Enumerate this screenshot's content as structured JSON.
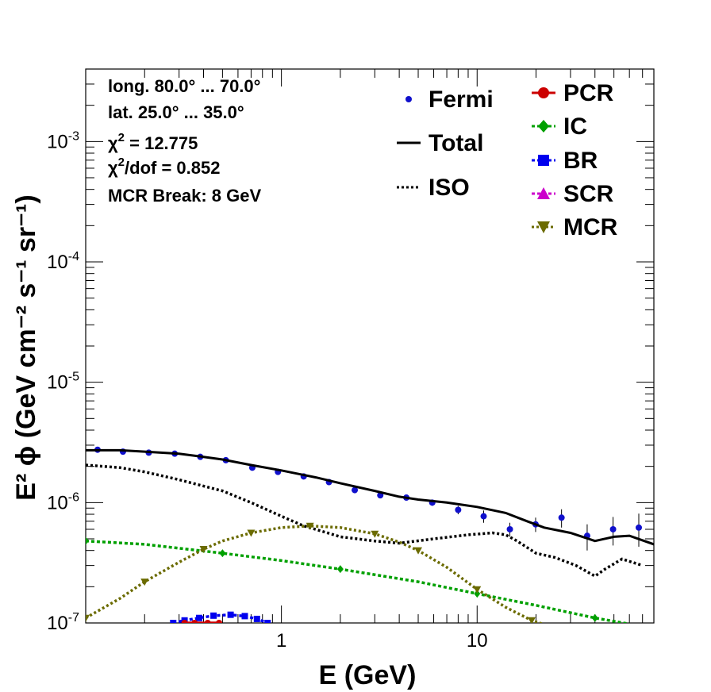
{
  "chart_data": {
    "type": "line",
    "x_scale": "log",
    "y_scale": "log",
    "xlim": [
      0.1,
      80
    ],
    "ylim": [
      1e-07,
      0.004
    ],
    "xlabel": "E (GeV)",
    "ylabel": "E² ϕ (GeV cm⁻² s⁻¹ sr⁻¹)",
    "x_ticks": [
      {
        "value": 1,
        "label": "1"
      },
      {
        "value": 10,
        "label": "10"
      }
    ],
    "y_ticks": [
      {
        "value": 1e-07,
        "base": "10",
        "exp": "-7"
      },
      {
        "value": 1e-06,
        "base": "10",
        "exp": "-6"
      },
      {
        "value": 1e-05,
        "base": "10",
        "exp": "-5"
      },
      {
        "value": 0.0001,
        "base": "10",
        "exp": "-4"
      },
      {
        "value": 0.001,
        "base": "10",
        "exp": "-3"
      }
    ],
    "annotations": {
      "longitude": "long. 80.0° ... 70.0°",
      "latitude": "lat. 25.0° ... 35.0°",
      "chi2_prefix": "χ",
      "chi2_sup": "2",
      "chi2_value": " = 12.775",
      "chi2dof_prefix": "χ",
      "chi2dof_sup": "2",
      "chi2dof_value": "/dof = 0.852",
      "mcr_break": "MCR Break:  8 GeV"
    },
    "legend": [
      {
        "name": "Fermi",
        "color": "#1010cc",
        "marker": "circle",
        "line": "none"
      },
      {
        "name": "Total",
        "color": "#000000",
        "marker": "none",
        "line": "solid"
      },
      {
        "name": "ISO",
        "color": "#000000",
        "marker": "none",
        "line": "dotted"
      },
      {
        "name": "PCR",
        "color": "#cc0000",
        "marker": "circle",
        "line": "solid"
      },
      {
        "name": "IC",
        "color": "#00a000",
        "marker": "diamond",
        "line": "dashed"
      },
      {
        "name": "BR",
        "color": "#0000ee",
        "marker": "square",
        "line": "dashed"
      },
      {
        "name": "SCR",
        "color": "#cc00cc",
        "marker": "triangle-up",
        "line": "dashed"
      },
      {
        "name": "MCR",
        "color": "#6b6b00",
        "marker": "triangle-down",
        "line": "dotted"
      }
    ],
    "series": [
      {
        "name": "Fermi",
        "kind": "points",
        "color": "#1010cc",
        "x": [
          0.115,
          0.155,
          0.21,
          0.285,
          0.385,
          0.52,
          0.71,
          0.96,
          1.3,
          1.75,
          2.37,
          3.2,
          4.35,
          5.9,
          8.0,
          10.8,
          14.7,
          19.9,
          27.0,
          36.5,
          49.5,
          67.0
        ],
        "y": [
          2.75e-06,
          2.65e-06,
          2.6e-06,
          2.55e-06,
          2.4e-06,
          2.25e-06,
          1.95e-06,
          1.8e-06,
          1.65e-06,
          1.48e-06,
          1.27e-06,
          1.15e-06,
          1.1e-06,
          1e-06,
          8.7e-07,
          7.7e-07,
          6e-07,
          6.6e-07,
          7.5e-07,
          5.3e-07,
          6e-07,
          6.2e-07
        ],
        "yerr": [
          6e-08,
          5e-08,
          5e-08,
          5e-08,
          5e-08,
          5e-08,
          5e-08,
          5e-08,
          5e-08,
          5e-08,
          5e-08,
          5e-08,
          5e-08,
          6e-08,
          7e-08,
          9e-08,
          8e-08,
          9e-08,
          1.3e-07,
          1.3e-07,
          1.6e-07,
          1.9e-07
        ]
      },
      {
        "name": "Total",
        "kind": "line",
        "color": "#000000",
        "dash": "",
        "x": [
          0.1,
          0.15,
          0.2,
          0.3,
          0.4,
          0.5,
          0.7,
          1.0,
          1.5,
          2.0,
          3.0,
          4.0,
          5.0,
          7.0,
          10.0,
          14.0,
          18.0,
          22.0,
          30.0,
          40.0,
          50.0,
          60.0,
          80.0
        ],
        "y": [
          2.72e-06,
          2.72e-06,
          2.65e-06,
          2.55e-06,
          2.4e-06,
          2.28e-06,
          2.05e-06,
          1.85e-06,
          1.62e-06,
          1.45e-06,
          1.25e-06,
          1.12e-06,
          1.06e-06,
          1e-06,
          9.2e-07,
          8.2e-07,
          7e-07,
          6.2e-07,
          5.6e-07,
          4.8e-07,
          5.2e-07,
          5.3e-07,
          4.5e-07
        ]
      },
      {
        "name": "ISO",
        "kind": "line",
        "color": "#000000",
        "dash": "3,3",
        "x": [
          0.1,
          0.15,
          0.2,
          0.3,
          0.5,
          0.7,
          1.0,
          1.3,
          1.6,
          2.0,
          3.0,
          4.0,
          6.0,
          9.0,
          12.0,
          14.0,
          16.0,
          20.0,
          25.0,
          32.0,
          40.0,
          45.0,
          55.0,
          70.0
        ],
        "y": [
          2.05e-06,
          1.95e-06,
          1.8e-06,
          1.55e-06,
          1.25e-06,
          1e-06,
          7.7e-07,
          6.4e-07,
          5.8e-07,
          5.2e-07,
          4.8e-07,
          4.6e-07,
          5e-07,
          5.4e-07,
          5.6e-07,
          5.4e-07,
          4.8e-07,
          3.8e-07,
          3.5e-07,
          3e-07,
          2.45e-07,
          2.8e-07,
          3.4e-07,
          3e-07
        ]
      },
      {
        "name": "IC",
        "kind": "line",
        "color": "#00a000",
        "dash": "4,3",
        "x": [
          0.1,
          0.2,
          0.5,
          1.0,
          2.0,
          5.0,
          10.0,
          20.0,
          40.0,
          60.0
        ],
        "y": [
          4.8e-07,
          4.5e-07,
          3.8e-07,
          3.3e-07,
          2.8e-07,
          2.2e-07,
          1.75e-07,
          1.4e-07,
          1.1e-07,
          9.8e-08
        ]
      },
      {
        "name": "MCR",
        "kind": "line",
        "color": "#6b6b00",
        "dash": "3,3",
        "x": [
          0.1,
          0.15,
          0.2,
          0.3,
          0.4,
          0.5,
          0.7,
          1.0,
          1.4,
          2.0,
          3.0,
          4.0,
          5.0,
          7.0,
          10.0,
          14.0,
          19.0,
          23.0
        ],
        "y": [
          1.1e-07,
          1.6e-07,
          2.2e-07,
          3.2e-07,
          4.1e-07,
          4.8e-07,
          5.6e-07,
          6.2e-07,
          6.4e-07,
          6.2e-07,
          5.5e-07,
          4.7e-07,
          4e-07,
          2.9e-07,
          1.9e-07,
          1.35e-07,
          1.05e-07,
          9.5e-08
        ]
      },
      {
        "name": "BR",
        "kind": "line",
        "color": "#0000ee",
        "dash": "4,3",
        "x": [
          0.28,
          0.32,
          0.38,
          0.45,
          0.55,
          0.65,
          0.75,
          0.85
        ],
        "y": [
          1e-07,
          1.05e-07,
          1.1e-07,
          1.15e-07,
          1.17e-07,
          1.14e-07,
          1.08e-07,
          1e-07
        ]
      },
      {
        "name": "PCR",
        "kind": "line",
        "color": "#cc0000",
        "dash": "",
        "x": [
          0.32,
          0.36,
          0.42,
          0.48
        ],
        "y": [
          1e-07,
          1e-07,
          1e-07,
          1e-07
        ]
      }
    ],
    "grid": false,
    "legend_position": "top-right"
  }
}
